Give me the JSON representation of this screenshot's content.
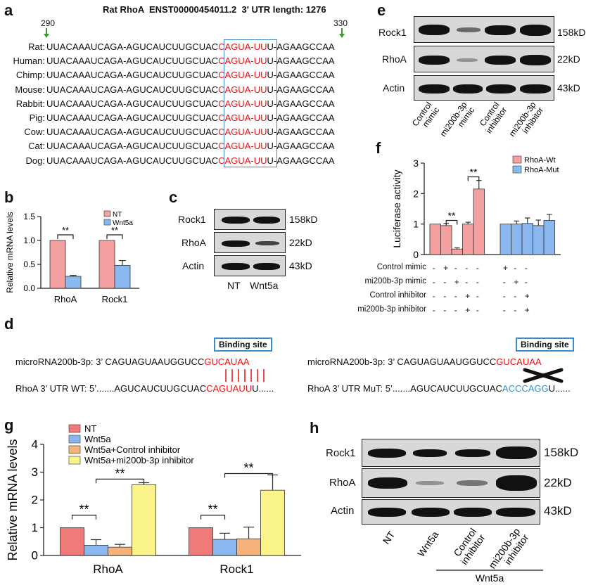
{
  "panels": {
    "a": {
      "label": "a",
      "title": "Rat RhoA  ENST00000454011.2  3' UTR length: 1276",
      "pos_start": "290",
      "pos_end": "330",
      "rows": [
        {
          "species": "Rat:",
          "pre": "UUACAAAUCAGA-AGUCAUCUUGCUAC",
          "site": "CAGUA-UU",
          "post": "U-AGAAGCCAA"
        },
        {
          "species": "Human:",
          "pre": "UUACAAAUCAGA-AGUCAUCUUGCUAC",
          "site": "CAGUA-UU",
          "post": "U-AGAAGCCAA"
        },
        {
          "species": "Chimp:",
          "pre": "UUACAAAUCAGA-AGUCAUCUUGCUAC",
          "site": "CAGUA-UU",
          "post": "U-AGAAGCCAA"
        },
        {
          "species": "Mouse:",
          "pre": "UUACAAAUCAGA-AGUCAUCUUGCUAC",
          "site": "CAGUA-UU",
          "post": "U-AGAAGCCAA"
        },
        {
          "species": "Rabbit:",
          "pre": "UUACAAAUCAGA-AGUCAUCUUGCUAC",
          "site": "CAGUA-UU",
          "post": "U-AGAAGCCAA"
        },
        {
          "species": "Pig:",
          "pre": "UUACAAAUCAGA-AGUCAUCUUGCUAC",
          "site": "CAGUA-UU",
          "post": "U-AGAAGCCAA"
        },
        {
          "species": "Cow:",
          "pre": "UUACAAAUCAGA-AGUCAUCUUGCUAC",
          "site": "CAGUA-UU",
          "post": "U-AGAAGCCAA"
        },
        {
          "species": "Cat:",
          "pre": "UUACAAAUCAGA-AGUCAUCUUGCUAC",
          "site": "CAGUA-UU",
          "post": "U-AGAAGCCAA"
        },
        {
          "species": "Dog:",
          "pre": "UUACAAAUCAGA-AGUCAUCUUGCUAC",
          "site": "CAGUA-UU",
          "post": "U-AGAAGCCAA"
        }
      ]
    },
    "b": {
      "label": "b"
    },
    "c": {
      "label": "c",
      "rows": [
        {
          "name": "Rock1",
          "size": "158kD"
        },
        {
          "name": "RhoA",
          "size": "22kD"
        },
        {
          "name": "Actin",
          "size": "43kD"
        }
      ],
      "lanes": [
        "NT",
        "Wnt5a"
      ]
    },
    "d": {
      "label": "d",
      "binding_site": "Binding site",
      "mirna_prefix": "microRNA200b-3p: 3’ CAGUAGUAAUGGUCC",
      "mirna_seed": "GUCAUAA",
      "wt_prefix": "RhoA 3’ UTR WT: 5’.......AGUCAUCUUGCUAC",
      "wt_site": "CAGUAUU",
      "wt_suffix": "U......",
      "mut_prefix": "RhoA 3’ UTR MuT: 5’.......AGUCAUCUUGCUAC",
      "mut_site": "ACCCAGG",
      "mut_suffix": "U......"
    },
    "e": {
      "label": "e",
      "rows": [
        {
          "name": "Rock1",
          "size": "158kD"
        },
        {
          "name": "RhoA",
          "size": "22kD"
        },
        {
          "name": "Actin",
          "size": "43kD"
        }
      ],
      "lanes": [
        [
          "Control",
          "mimic"
        ],
        [
          "mi200b-3p",
          "mimic"
        ],
        [
          "Control",
          "inhibitor"
        ],
        [
          "mi200b-3p",
          "inhibitor"
        ]
      ]
    },
    "f": {
      "label": "f",
      "conditions": [
        "Control mimic",
        "mi200b-3p mimic",
        "Control inhibitor",
        "mi200b-3p inhibitor"
      ],
      "signs": [
        [
          "-",
          "+",
          "-",
          "-",
          "-",
          "+",
          "-",
          "-"
        ],
        [
          "-",
          "-",
          "+",
          "-",
          "-",
          "-",
          "+",
          "-"
        ],
        [
          "-",
          "-",
          "-",
          "+",
          "-",
          "-",
          "-",
          "+"
        ],
        [
          "-",
          "-",
          "-",
          "+",
          "-",
          "-",
          "-",
          "+"
        ]
      ]
    },
    "g": {
      "label": "g"
    },
    "h": {
      "label": "h",
      "rows": [
        {
          "name": "Rock1",
          "size": "158kD"
        },
        {
          "name": "RhoA",
          "size": "22kD"
        },
        {
          "name": "Actin",
          "size": "43kD"
        }
      ],
      "lanes": [
        [
          "NT"
        ],
        [
          "Wnt5a"
        ],
        [
          "Control",
          "inhibitor"
        ],
        [
          "mi200b-3p",
          "inhibitor"
        ]
      ],
      "group": "Wnt5a"
    }
  },
  "chart_data": [
    {
      "id": "b",
      "type": "bar",
      "categories": [
        "RhoA",
        "Rock1"
      ],
      "series": [
        {
          "name": "NT",
          "values": [
            1.0,
            1.0
          ],
          "errors": [
            0.0,
            0.0
          ],
          "color": "#f4a0a0"
        },
        {
          "name": "Wnt5a",
          "values": [
            0.25,
            0.48
          ],
          "errors": [
            0.02,
            0.1
          ],
          "color": "#8ab8ef"
        }
      ],
      "ylabel": "Relative mRNA levels",
      "ylim": [
        0,
        1.5
      ],
      "yticks": [
        "0.0",
        "0.5",
        "1.0",
        "1.5"
      ],
      "significance": [
        "**",
        "**"
      ]
    },
    {
      "id": "f",
      "type": "bar",
      "ylabel": "Luciferase activity",
      "ylim": [
        0,
        3
      ],
      "yticks": [
        "0",
        "1",
        "2",
        "3"
      ],
      "series": [
        {
          "name": "RhoA-Wt",
          "values": [
            1.0,
            0.95,
            0.18,
            1.0,
            2.15
          ],
          "errors": [
            0.0,
            0.07,
            0.04,
            0.06,
            0.28
          ],
          "color": "#f4a0a0"
        },
        {
          "name": "RhoA-Mut",
          "values": [
            1.0,
            1.0,
            1.02,
            0.95,
            1.12
          ],
          "errors": [
            0.0,
            0.1,
            0.18,
            0.18,
            0.2
          ],
          "color": "#8ab8ef"
        }
      ],
      "significance": [
        "**",
        "**"
      ]
    },
    {
      "id": "g",
      "type": "bar",
      "categories": [
        "RhoA",
        "Rock1"
      ],
      "series": [
        {
          "name": "NT",
          "values": [
            1.0,
            1.0
          ],
          "errors": [
            0.0,
            0.0
          ],
          "color": "#f07a7a"
        },
        {
          "name": "Wnt5a",
          "values": [
            0.37,
            0.58
          ],
          "errors": [
            0.2,
            0.22
          ],
          "color": "#8ab8ef"
        },
        {
          "name": "Wnt5a+Control inhibitor",
          "values": [
            0.3,
            0.6
          ],
          "errors": [
            0.1,
            0.42
          ],
          "color": "#f5b27a"
        },
        {
          "name": "Wnt5a+mi200b-3p inhibitor",
          "values": [
            2.55,
            2.35
          ],
          "errors": [
            0.07,
            0.55
          ],
          "color": "#fbf48a"
        }
      ],
      "ylabel": "Relative mRNA levels",
      "ylim": [
        0,
        4
      ],
      "yticks": [
        "0",
        "1",
        "2",
        "3",
        "4"
      ],
      "significance": [
        "**",
        "**",
        "**",
        "**"
      ]
    }
  ]
}
